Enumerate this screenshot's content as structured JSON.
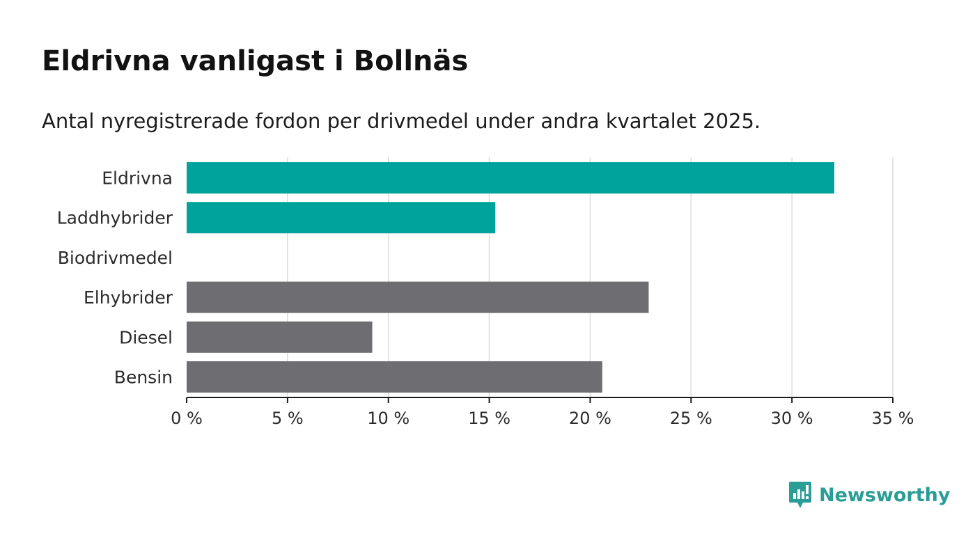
{
  "title": "Eldrivna vanligast i Bollnäs",
  "subtitle": "Antal nyregistrerade fordon per drivmedel under andra kvartalet 2025.",
  "brand": {
    "name": "Newsworthy",
    "icon": "newsworthy-logo-icon",
    "color": "#2a9d96"
  },
  "colors": {
    "highlight": "#00a39b",
    "default": "#6e6d72",
    "grid": "#dcdcdc",
    "axis": "#1c1c1c",
    "label": "#2b2b2b"
  },
  "chart_data": {
    "type": "bar",
    "orientation": "horizontal",
    "categories": [
      "Eldrivna",
      "Laddhybrider",
      "Biodrivmedel",
      "Elhybrider",
      "Diesel",
      "Bensin"
    ],
    "values": [
      32.1,
      15.3,
      0,
      22.9,
      9.2,
      20.6
    ],
    "bar_colors": [
      "highlight",
      "highlight",
      "highlight",
      "default",
      "default",
      "default"
    ],
    "xlim": [
      0,
      35
    ],
    "xticks": [
      0,
      5,
      10,
      15,
      20,
      25,
      30,
      35
    ],
    "xtick_labels": [
      "0 %",
      "5 %",
      "10 %",
      "15 %",
      "20 %",
      "25 %",
      "30 %",
      "35 %"
    ],
    "xlabel": "",
    "ylabel": "",
    "grid": "vertical"
  }
}
